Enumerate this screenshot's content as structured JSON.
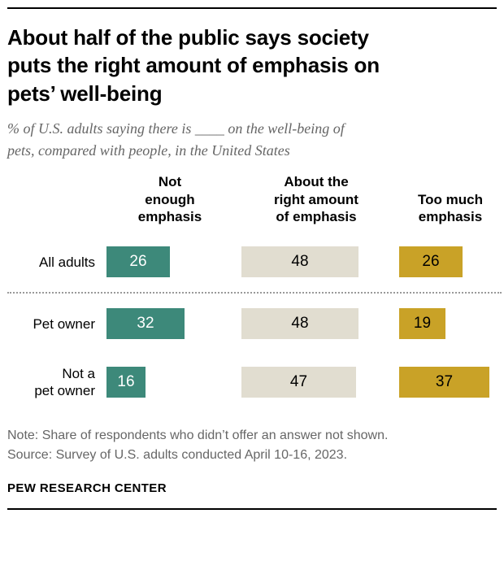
{
  "header": {
    "title": "About half of the public says society\nputs the right amount of emphasis on\npets’ well-being",
    "subtitle": "% of U.S. adults saying there is ____ on the well-being of\npets, compared with people, in the United States"
  },
  "chart_data": {
    "type": "bar",
    "orientation": "horizontal",
    "title": "About half of the public says society puts the right amount of emphasis on pets’ well-being",
    "categories": [
      "All adults",
      "Pet owner",
      "Not a pet owner"
    ],
    "row_labels": [
      "All adults",
      "Pet owner",
      "Not a\npet owner"
    ],
    "columns": [
      {
        "label": "Not\nenough\nemphasis",
        "name": "Not enough emphasis",
        "color": "#3D897A",
        "text_color": "#FFFFFF"
      },
      {
        "label": "About the\nright amount\nof emphasis",
        "name": "About the right amount of emphasis",
        "color": "#E1DDD0",
        "text_color": "#000000"
      },
      {
        "label": "Too much\nemphasis",
        "name": "Too much emphasis",
        "color": "#C9A227",
        "text_color": "#000000"
      }
    ],
    "series": [
      {
        "name": "Not enough emphasis",
        "values": [
          26,
          32,
          16
        ]
      },
      {
        "name": "About the right amount of emphasis",
        "values": [
          48,
          48,
          47
        ]
      },
      {
        "name": "Too much emphasis",
        "values": [
          26,
          19,
          37
        ]
      }
    ],
    "xlim": [
      0,
      55
    ],
    "value_suffix": "",
    "legend_position": "column-headers",
    "grid": false
  },
  "footer": {
    "note": "Note: Share of respondents who didn’t offer an answer not shown.",
    "source": "Source: Survey of U.S. adults conducted April 10-16, 2023.",
    "brand": "PEW RESEARCH CENTER"
  }
}
